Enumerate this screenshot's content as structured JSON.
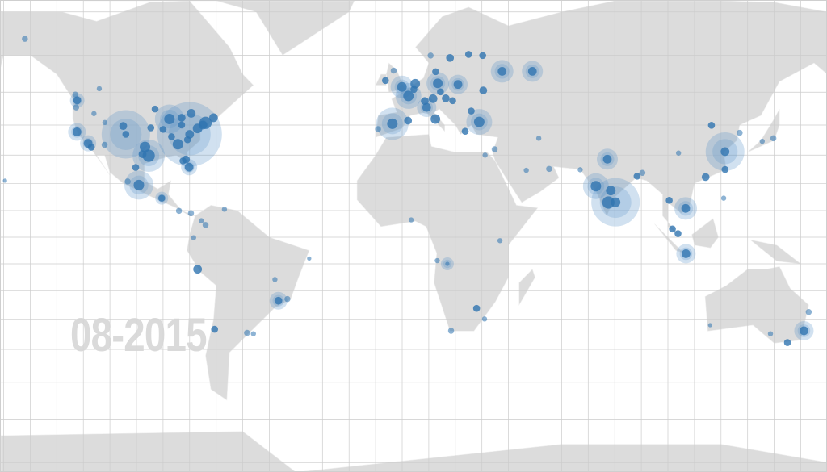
{
  "map": {
    "date_label": "08-2015",
    "colors": {
      "land": "#dcdcdc",
      "ocean": "#ffffff",
      "grid": "#cccccc",
      "point": "#2f74b0",
      "halo": "#5a95c8"
    },
    "graticule_step_degrees": 10,
    "projection": "miller",
    "point_fields": [
      "lon",
      "lat",
      "weight",
      "halo"
    ],
    "points": [
      [
        -142,
        64,
        5,
        0
      ],
      [
        -149.5,
        21,
        3,
        0
      ],
      [
        -122.3,
        47.6,
        7,
        9
      ],
      [
        -122.7,
        45.5,
        5,
        0
      ],
      [
        -122.4,
        37.8,
        8,
        11
      ],
      [
        -118.2,
        34,
        8,
        10
      ],
      [
        -117,
        32.7,
        6,
        0
      ],
      [
        -112,
        33.5,
        5,
        0
      ],
      [
        -105,
        39.7,
        7,
        0
      ],
      [
        -104,
        37,
        6,
        30
      ],
      [
        -96.8,
        32.8,
        10,
        0
      ],
      [
        -95.4,
        29.8,
        12,
        20
      ],
      [
        -97.7,
        30.3,
        7,
        0
      ],
      [
        -87.6,
        41.9,
        10,
        18
      ],
      [
        -84.4,
        33.7,
        10,
        0
      ],
      [
        -74,
        40.7,
        12,
        0
      ],
      [
        -80,
        37,
        8,
        40
      ],
      [
        -71,
        42.3,
        8,
        0
      ],
      [
        -77,
        38.9,
        9,
        0
      ],
      [
        -80.2,
        25.8,
        8,
        10
      ],
      [
        -79.4,
        43.7,
        8,
        0
      ],
      [
        -93,
        45,
        6,
        0
      ],
      [
        -94.6,
        39.1,
        6,
        0
      ],
      [
        -90,
        38.6,
        6,
        0
      ],
      [
        -86.8,
        36.2,
        6,
        0
      ],
      [
        -80.8,
        35.2,
        6,
        0
      ],
      [
        -75,
        40,
        8,
        0
      ],
      [
        -83,
        42.3,
        7,
        0
      ],
      [
        -83,
        40,
        6,
        0
      ],
      [
        -81.4,
        28.5,
        7,
        0
      ],
      [
        -82.5,
        28,
        6,
        0
      ],
      [
        -111.9,
        40.8,
        4,
        0
      ],
      [
        -116,
        43.6,
        4,
        0
      ],
      [
        -123,
        49.3,
        5,
        0
      ],
      [
        -114,
        51,
        4,
        0
      ],
      [
        -99.1,
        19.4,
        10,
        18
      ],
      [
        -103.3,
        20.7,
        5,
        0
      ],
      [
        -100.3,
        25.7,
        6,
        0
      ],
      [
        -90.5,
        14.6,
        6,
        8
      ],
      [
        -84,
        9.9,
        5,
        0
      ],
      [
        -79.5,
        9,
        5,
        0
      ],
      [
        -74,
        4.6,
        5,
        0
      ],
      [
        -66.9,
        10.5,
        4,
        0
      ],
      [
        -75.6,
        6.2,
        4,
        0
      ],
      [
        -78.5,
        -0.2,
        4,
        0
      ],
      [
        -77,
        -12,
        8,
        0
      ],
      [
        -46.6,
        -23.5,
        7,
        11
      ],
      [
        -43.2,
        -22.9,
        5,
        0
      ],
      [
        -70.6,
        -33.4,
        6,
        0
      ],
      [
        -58.4,
        -34.6,
        5,
        0
      ],
      [
        -56,
        -34.9,
        4,
        0
      ],
      [
        -47.9,
        -15.8,
        4,
        0
      ],
      [
        -35,
        -8,
        3,
        0
      ],
      [
        -0.1,
        51.5,
        9,
        14
      ],
      [
        2.35,
        48.9,
        10,
        16
      ],
      [
        -3.7,
        40.4,
        10,
        20
      ],
      [
        -9.1,
        38.7,
        5,
        0
      ],
      [
        2.2,
        41.4,
        7,
        0
      ],
      [
        4.9,
        52.4,
        9,
        0
      ],
      [
        4.4,
        50.8,
        6,
        0
      ],
      [
        13.4,
        52.5,
        9,
        14
      ],
      [
        11.6,
        48.1,
        8,
        0
      ],
      [
        8.5,
        47.4,
        7,
        0
      ],
      [
        9.2,
        45.5,
        8,
        12
      ],
      [
        12.5,
        41.9,
        9,
        0
      ],
      [
        16.4,
        48.2,
        7,
        0
      ],
      [
        14.4,
        50.1,
        6,
        0
      ],
      [
        21,
        52.2,
        8,
        12
      ],
      [
        18,
        59.3,
        7,
        0
      ],
      [
        10.7,
        59.9,
        5,
        0
      ],
      [
        12.6,
        55.7,
        6,
        0
      ],
      [
        25,
        60.2,
        6,
        0
      ],
      [
        37.6,
        55.8,
        8,
        14
      ],
      [
        30.5,
        50.5,
        7,
        0
      ],
      [
        29,
        41,
        10,
        16
      ],
      [
        23.7,
        38,
        6,
        0
      ],
      [
        26,
        44.4,
        6,
        0
      ],
      [
        19,
        47.5,
        6,
        0
      ],
      [
        -6.3,
        53.3,
        6,
        0
      ],
      [
        -3.2,
        56,
        5,
        0
      ],
      [
        30.3,
        59.9,
        6,
        0
      ],
      [
        49,
        55.8,
        8,
        13
      ],
      [
        34.8,
        32,
        5,
        0
      ],
      [
        31.2,
        30,
        4,
        0
      ],
      [
        55.3,
        25.2,
        5,
        0
      ],
      [
        46.7,
        24.7,
        4,
        0
      ],
      [
        51.4,
        35.7,
        4,
        0
      ],
      [
        67,
        24.9,
        4,
        0
      ],
      [
        77.2,
        28.6,
        8,
        13
      ],
      [
        72.9,
        19,
        10,
        16
      ],
      [
        77.6,
        13,
        12,
        0
      ],
      [
        78.5,
        17.4,
        9,
        0
      ],
      [
        80.3,
        13.1,
        9,
        30
      ],
      [
        88.4,
        22.6,
        6,
        0
      ],
      [
        90.4,
        23.8,
        5,
        0
      ],
      [
        100.5,
        13.8,
        6,
        0
      ],
      [
        106.7,
        10.8,
        8,
        14
      ],
      [
        101.7,
        3.1,
        6,
        0
      ],
      [
        103.8,
        1.35,
        6,
        0
      ],
      [
        106.8,
        -6.2,
        8,
        12
      ],
      [
        121,
        14.6,
        4,
        0
      ],
      [
        114.2,
        22.3,
        7,
        0
      ],
      [
        121.5,
        31.2,
        8,
        24
      ],
      [
        116.4,
        39.9,
        6,
        0
      ],
      [
        127,
        37.5,
        5,
        0
      ],
      [
        139.7,
        35.7,
        5,
        0
      ],
      [
        135.5,
        34.7,
        4,
        0
      ],
      [
        121.5,
        25,
        6,
        0
      ],
      [
        104,
        30.7,
        4,
        0
      ],
      [
        151.2,
        -33.9,
        8,
        12
      ],
      [
        145,
        -37.8,
        6,
        0
      ],
      [
        153,
        -27.5,
        5,
        0
      ],
      [
        115.9,
        -32,
        3,
        0
      ],
      [
        138.6,
        -34.9,
        4,
        0
      ],
      [
        28,
        -26.2,
        6,
        0
      ],
      [
        18.4,
        -33.9,
        5,
        0
      ],
      [
        31,
        -29.9,
        4,
        0
      ],
      [
        3.4,
        6.5,
        4,
        0
      ],
      [
        36.8,
        -1.3,
        4,
        0
      ],
      [
        13.2,
        -8.8,
        4,
        0
      ],
      [
        17,
        -10,
        3,
        8
      ]
    ]
  }
}
